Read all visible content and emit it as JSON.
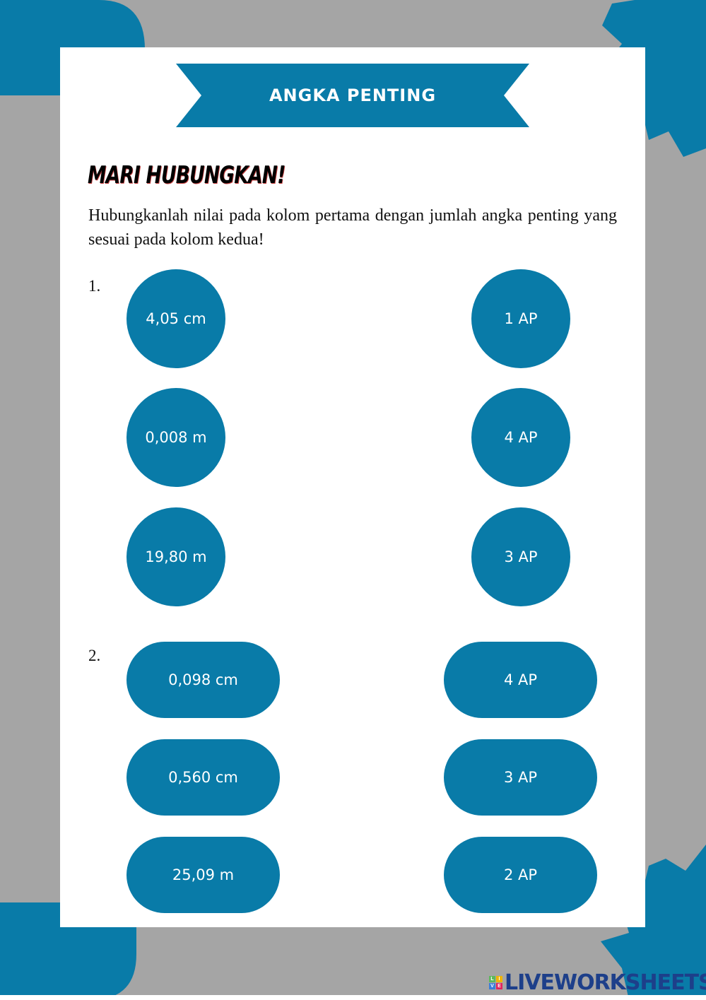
{
  "colors": {
    "accent": "#097ba8",
    "background": "#a5a5a5",
    "card": "#ffffff"
  },
  "title": "ANGKA PENTING",
  "heading": "MARI HUBUNGKAN!",
  "instruction": "Hubungkanlah nilai pada kolom pertama dengan jumlah angka penting yang sesuai pada kolom kedua!",
  "questions": [
    {
      "number": "1.",
      "left": [
        "4,05 cm",
        "0,008 m",
        "19,80 m"
      ],
      "right": [
        "1 AP",
        "4 AP",
        "3 AP"
      ]
    },
    {
      "number": "2.",
      "left": [
        "0,098 cm",
        "0,560 cm",
        "25,09 m"
      ],
      "right": [
        "4 AP",
        "3 AP",
        "2 AP"
      ]
    }
  ],
  "watermark": {
    "text": "LIVEWORKSHEETS",
    "badge": [
      "L",
      "I",
      "V",
      "E"
    ]
  }
}
